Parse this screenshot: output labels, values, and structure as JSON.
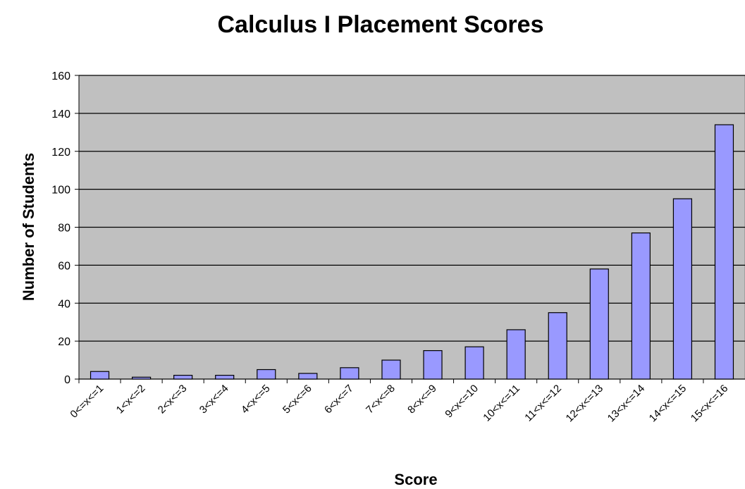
{
  "chart_data": {
    "type": "bar",
    "title": "Calculus I Placement Scores",
    "x_label": "Score",
    "y_label": "Number of Students",
    "categories": [
      "0<=x<=1",
      "1<x<=2",
      "2<x<=3",
      "3<x<=4",
      "4<x<=5",
      "5<x<=6",
      "6<x<=7",
      "7<x<=8",
      "8<x<=9",
      "9<x<=10",
      "10<x<=11",
      "11<x<=12",
      "12<x<=13",
      "13<x<=14",
      "14<x<=15",
      "15<x<=16"
    ],
    "values": [
      4,
      1,
      2,
      2,
      5,
      3,
      6,
      10,
      15,
      17,
      26,
      35,
      58,
      77,
      95,
      134
    ],
    "color": "#9999ff",
    "ylim": [
      0,
      160
    ],
    "yticks": [
      0,
      20,
      40,
      60,
      80,
      100,
      120,
      140,
      160
    ],
    "grid": true
  }
}
